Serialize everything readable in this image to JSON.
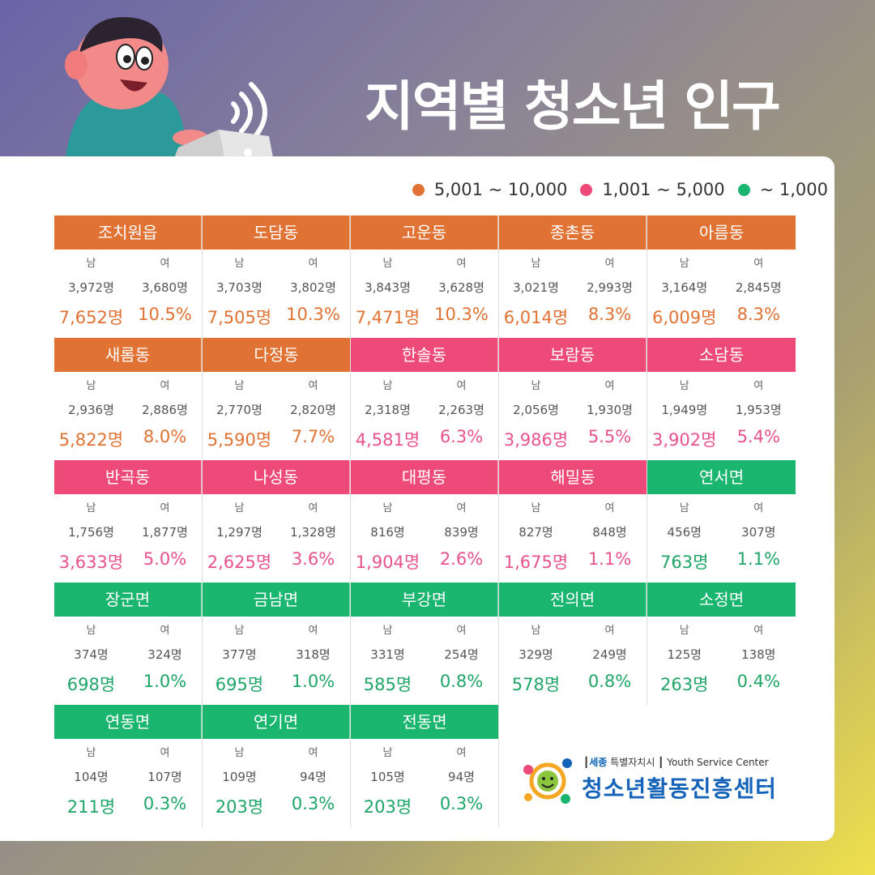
{
  "title": "지역별 청소년 인구",
  "legend": [
    {
      "label": "5,001 ~ 10,000",
      "color": "#e07234"
    },
    {
      "label": "1,001 ~ 5,000",
      "color": "#ee4a78"
    },
    {
      "label": "~ 1,000",
      "color": "#1ab56e"
    }
  ],
  "labels": {
    "male": "남",
    "female": "여"
  },
  "regions": [
    {
      "name": "조치원읍",
      "male": "3,972명",
      "female": "3,680명",
      "total": "7,652명",
      "pct": "10.5%",
      "tier": "orange"
    },
    {
      "name": "도담동",
      "male": "3,703명",
      "female": "3,802명",
      "total": "7,505명",
      "pct": "10.3%",
      "tier": "orange"
    },
    {
      "name": "고운동",
      "male": "3,843명",
      "female": "3,628명",
      "total": "7,471명",
      "pct": "10.3%",
      "tier": "orange"
    },
    {
      "name": "종촌동",
      "male": "3,021명",
      "female": "2,993명",
      "total": "6,014명",
      "pct": "8.3%",
      "tier": "orange"
    },
    {
      "name": "아름동",
      "male": "3,164명",
      "female": "2,845명",
      "total": "6,009명",
      "pct": "8.3%",
      "tier": "orange"
    },
    {
      "name": "새롬동",
      "male": "2,936명",
      "female": "2,886명",
      "total": "5,822명",
      "pct": "8.0%",
      "tier": "orange"
    },
    {
      "name": "다정동",
      "male": "2,770명",
      "female": "2,820명",
      "total": "5,590명",
      "pct": "7.7%",
      "tier": "orange"
    },
    {
      "name": "한솔동",
      "male": "2,318명",
      "female": "2,263명",
      "total": "4,581명",
      "pct": "6.3%",
      "tier": "pink"
    },
    {
      "name": "보람동",
      "male": "2,056명",
      "female": "1,930명",
      "total": "3,986명",
      "pct": "5.5%",
      "tier": "pink"
    },
    {
      "name": "소담동",
      "male": "1,949명",
      "female": "1,953명",
      "total": "3,902명",
      "pct": "5.4%",
      "tier": "pink"
    },
    {
      "name": "반곡동",
      "male": "1,756명",
      "female": "1,877명",
      "total": "3,633명",
      "pct": "5.0%",
      "tier": "pink"
    },
    {
      "name": "나성동",
      "male": "1,297명",
      "female": "1,328명",
      "total": "2,625명",
      "pct": "3.6%",
      "tier": "pink"
    },
    {
      "name": "대평동",
      "male": "816명",
      "female": "839명",
      "total": "1,904명",
      "pct": "2.6%",
      "tier": "pink"
    },
    {
      "name": "해밀동",
      "male": "827명",
      "female": "848명",
      "total": "1,675명",
      "pct": "1.1%",
      "tier": "pink"
    },
    {
      "name": "연서면",
      "male": "456명",
      "female": "307명",
      "total": "763명",
      "pct": "1.1%",
      "tier": "green"
    },
    {
      "name": "장군면",
      "male": "374명",
      "female": "324명",
      "total": "698명",
      "pct": "1.0%",
      "tier": "green"
    },
    {
      "name": "금남면",
      "male": "377명",
      "female": "318명",
      "total": "695명",
      "pct": "1.0%",
      "tier": "green"
    },
    {
      "name": "부강면",
      "male": "331명",
      "female": "254명",
      "total": "585명",
      "pct": "0.8%",
      "tier": "green"
    },
    {
      "name": "전의면",
      "male": "329명",
      "female": "249명",
      "total": "578명",
      "pct": "0.8%",
      "tier": "green"
    },
    {
      "name": "소정면",
      "male": "125명",
      "female": "138명",
      "total": "263명",
      "pct": "0.4%",
      "tier": "green"
    },
    {
      "name": "연동면",
      "male": "104명",
      "female": "107명",
      "total": "211명",
      "pct": "0.3%",
      "tier": "green"
    },
    {
      "name": "연기면",
      "male": "109명",
      "female": "94명",
      "total": "203명",
      "pct": "0.3%",
      "tier": "green"
    },
    {
      "name": "전동면",
      "male": "105명",
      "female": "94명",
      "total": "203명",
      "pct": "0.3%",
      "tier": "green"
    }
  ],
  "logo": {
    "city": "세종",
    "org_prefix": "특별자치시",
    "english": "Youth Service Center",
    "name": "청소년활동진흥센터"
  }
}
